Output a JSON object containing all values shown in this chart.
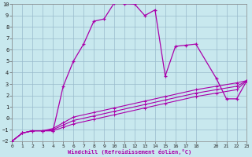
{
  "background_color": "#c8e8ee",
  "line_color": "#aa00aa",
  "grid_color": "#99bbcc",
  "xlabel": "Windchill (Refroidissement éolien,°C)",
  "xlim": [
    0,
    23
  ],
  "ylim": [
    -2,
    10
  ],
  "xticks": [
    0,
    1,
    2,
    3,
    4,
    5,
    6,
    7,
    8,
    9,
    10,
    11,
    12,
    13,
    14,
    15,
    16,
    17,
    18,
    20,
    21,
    22,
    23
  ],
  "yticks": [
    -2,
    -1,
    0,
    1,
    2,
    3,
    4,
    5,
    6,
    7,
    8,
    9,
    10
  ],
  "upper_x": [
    0,
    1,
    2,
    3,
    4,
    5,
    6,
    7,
    8,
    9,
    10,
    11,
    12,
    13,
    14,
    15,
    16,
    17,
    18,
    20,
    21,
    22,
    23
  ],
  "upper_y": [
    -2.0,
    -1.3,
    -1.1,
    -1.1,
    -1.1,
    2.8,
    5.0,
    6.5,
    8.5,
    8.7,
    10.1,
    10.05,
    10.0,
    9.0,
    9.5,
    3.7,
    6.3,
    6.4,
    6.5,
    3.5,
    1.7,
    1.7,
    3.3
  ],
  "low1_x": [
    0,
    1,
    2,
    3,
    4,
    5,
    6,
    8,
    10,
    13,
    15,
    18,
    20,
    22,
    23
  ],
  "low1_y": [
    -2.0,
    -1.3,
    -1.1,
    -1.1,
    -1.1,
    -0.8,
    -0.5,
    -0.1,
    0.3,
    0.9,
    1.3,
    1.9,
    2.2,
    2.5,
    3.3
  ],
  "low2_x": [
    0,
    1,
    2,
    3,
    4,
    5,
    6,
    8,
    10,
    13,
    15,
    18,
    20,
    22,
    23
  ],
  "low2_y": [
    -2.0,
    -1.3,
    -1.1,
    -1.1,
    -1.0,
    -0.6,
    -0.2,
    0.2,
    0.6,
    1.2,
    1.6,
    2.2,
    2.5,
    2.8,
    3.3
  ],
  "low3_x": [
    0,
    1,
    2,
    3,
    4,
    5,
    6,
    8,
    10,
    13,
    15,
    18,
    20,
    22,
    23
  ],
  "low3_y": [
    -2.0,
    -1.3,
    -1.1,
    -1.1,
    -0.9,
    -0.4,
    0.1,
    0.5,
    0.9,
    1.5,
    1.9,
    2.5,
    2.8,
    3.1,
    3.3
  ]
}
